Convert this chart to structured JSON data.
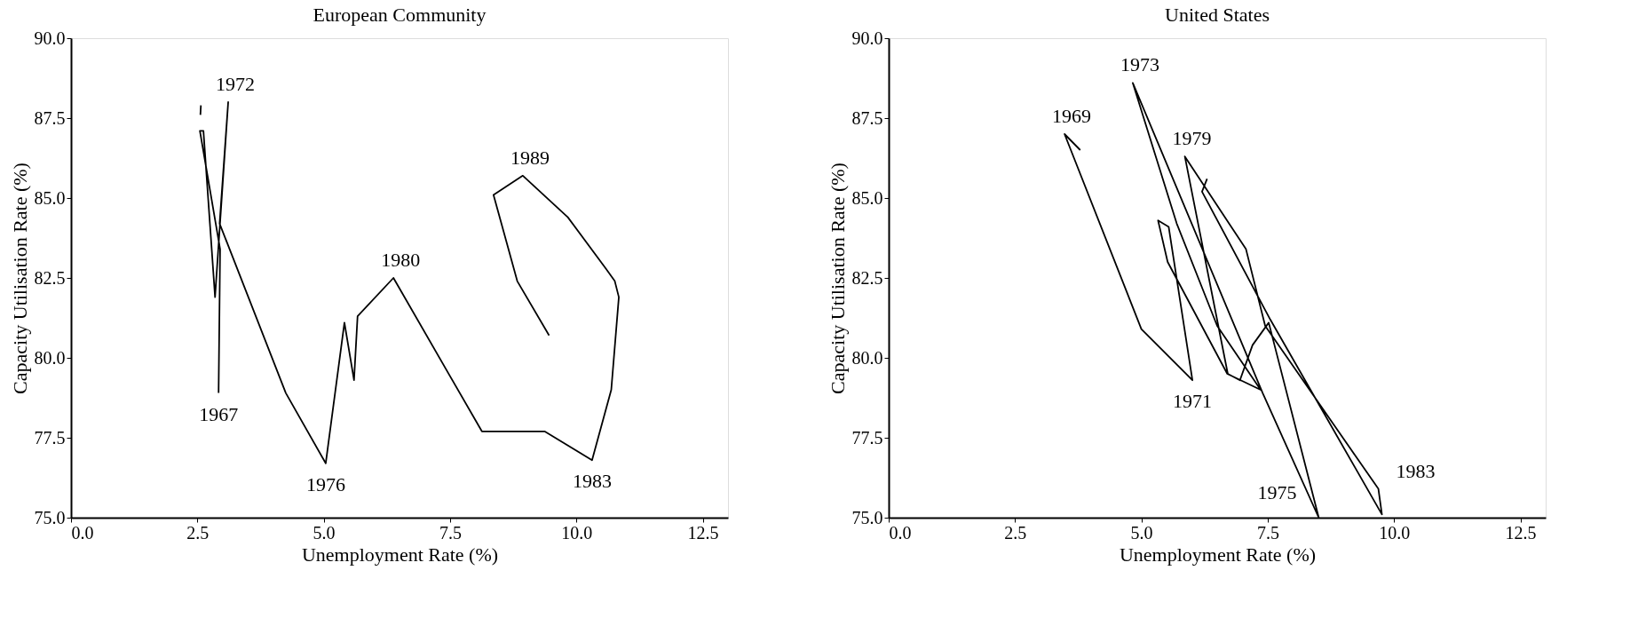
{
  "chart_data": [
    {
      "type": "line",
      "title": "European Community",
      "xlabel": "Unemployment Rate (%)",
      "ylabel": "Capacity Utilisation Rate (%)",
      "xlim": [
        0,
        13
      ],
      "ylim": [
        75,
        90
      ],
      "xticks": [
        {
          "value": 0,
          "label": "0.0"
        },
        2.5,
        {
          "value": 5,
          "label": "5.0"
        },
        7.5,
        {
          "value": 10,
          "label": "10.0"
        },
        12.5
      ],
      "yticks": [
        {
          "value": 75,
          "label": "75.0"
        },
        77.5,
        {
          "value": 80,
          "label": "80.0"
        },
        82.5,
        {
          "value": 85,
          "label": "85.0"
        },
        87.5,
        {
          "value": 90,
          "label": "90.0"
        }
      ],
      "grid": false,
      "marker": "none",
      "series": [
        {
          "color": "#000000",
          "x": [
            2.92,
            2.95,
            2.55,
            2.62,
            2.85,
            3.11,
            2.94,
            4.25,
            5.04,
            5.41,
            5.6,
            5.67,
            6.38,
            8.13,
            9.37,
            10.31,
            10.69,
            10.84,
            10.76,
            10.58,
            9.83,
            8.94,
            8.36,
            8.83,
            9.46
          ],
          "values": [
            78.9,
            83.4,
            87.1,
            87.1,
            81.9,
            88.0,
            84.2,
            78.9,
            76.7,
            81.1,
            79.3,
            81.3,
            82.5,
            77.7,
            77.7,
            76.8,
            79.0,
            81.9,
            82.4,
            82.8,
            84.4,
            85.7,
            85.1,
            82.4,
            80.7
          ]
        },
        {
          "color": "#000000",
          "x": [
            2.56,
            2.57
          ],
          "values": [
            87.6,
            87.9
          ]
        }
      ],
      "annotations": [
        {
          "text": "1972",
          "x": 3.11,
          "y": 88.0
        },
        {
          "text": "1967",
          "x": 2.92,
          "y": 78.9
        },
        {
          "text": "1976",
          "x": 5.04,
          "y": 76.7
        },
        {
          "text": "1980",
          "x": 6.38,
          "y": 82.5
        },
        {
          "text": "1989",
          "x": 8.94,
          "y": 85.7
        },
        {
          "text": "1983",
          "x": 10.31,
          "y": 76.8
        }
      ]
    },
    {
      "type": "line",
      "title": "United States",
      "xlabel": "Unemployment Rate (%)",
      "ylabel": "Capacity Utilisation Rate (%)",
      "xlim": [
        0,
        13
      ],
      "ylim": [
        75,
        90
      ],
      "xticks": [
        {
          "value": 0,
          "label": "0.0"
        },
        2.5,
        {
          "value": 5,
          "label": "5.0"
        },
        7.5,
        {
          "value": 10,
          "label": "10.0"
        },
        12.5
      ],
      "yticks": [
        {
          "value": 75,
          "label": "75.0"
        },
        77.5,
        {
          "value": 80,
          "label": "80.0"
        },
        82.5,
        {
          "value": 85,
          "label": "85.0"
        },
        87.5,
        {
          "value": 90,
          "label": "90.0"
        }
      ],
      "grid": false,
      "marker": "none",
      "series": [
        {
          "color": "#000000",
          "x": [
            3.79,
            3.48,
            5.0,
            6.01,
            5.54,
            5.33,
            5.52,
            6.7,
            7.36,
            6.5,
            5.7,
            4.83,
            7.4,
            8.51,
            7.52,
            7.2,
            6.95,
            6.71,
            5.86,
            7.07,
            7.45,
            9.69,
            9.76,
            7.55,
            6.2,
            6.3
          ],
          "values": [
            86.5,
            87.0,
            80.9,
            79.3,
            84.1,
            84.3,
            83.0,
            79.5,
            79.0,
            81.0,
            84.2,
            88.6,
            78.9,
            75.0,
            81.1,
            80.4,
            79.3,
            79.5,
            86.3,
            83.4,
            81.0,
            75.9,
            75.1,
            81.2,
            85.2,
            85.6
          ]
        }
      ],
      "annotations": [
        {
          "text": "1969",
          "x": 3.48,
          "y": 87.0
        },
        {
          "text": "1973",
          "x": 4.83,
          "y": 88.6
        },
        {
          "text": "1979",
          "x": 5.86,
          "y": 86.3
        },
        {
          "text": "1971",
          "x": 6.01,
          "y": 79.3
        },
        {
          "text": "1975",
          "x": 8.51,
          "y": 75.0
        },
        {
          "text": "1983",
          "x": 9.69,
          "y": 75.9
        }
      ]
    }
  ]
}
